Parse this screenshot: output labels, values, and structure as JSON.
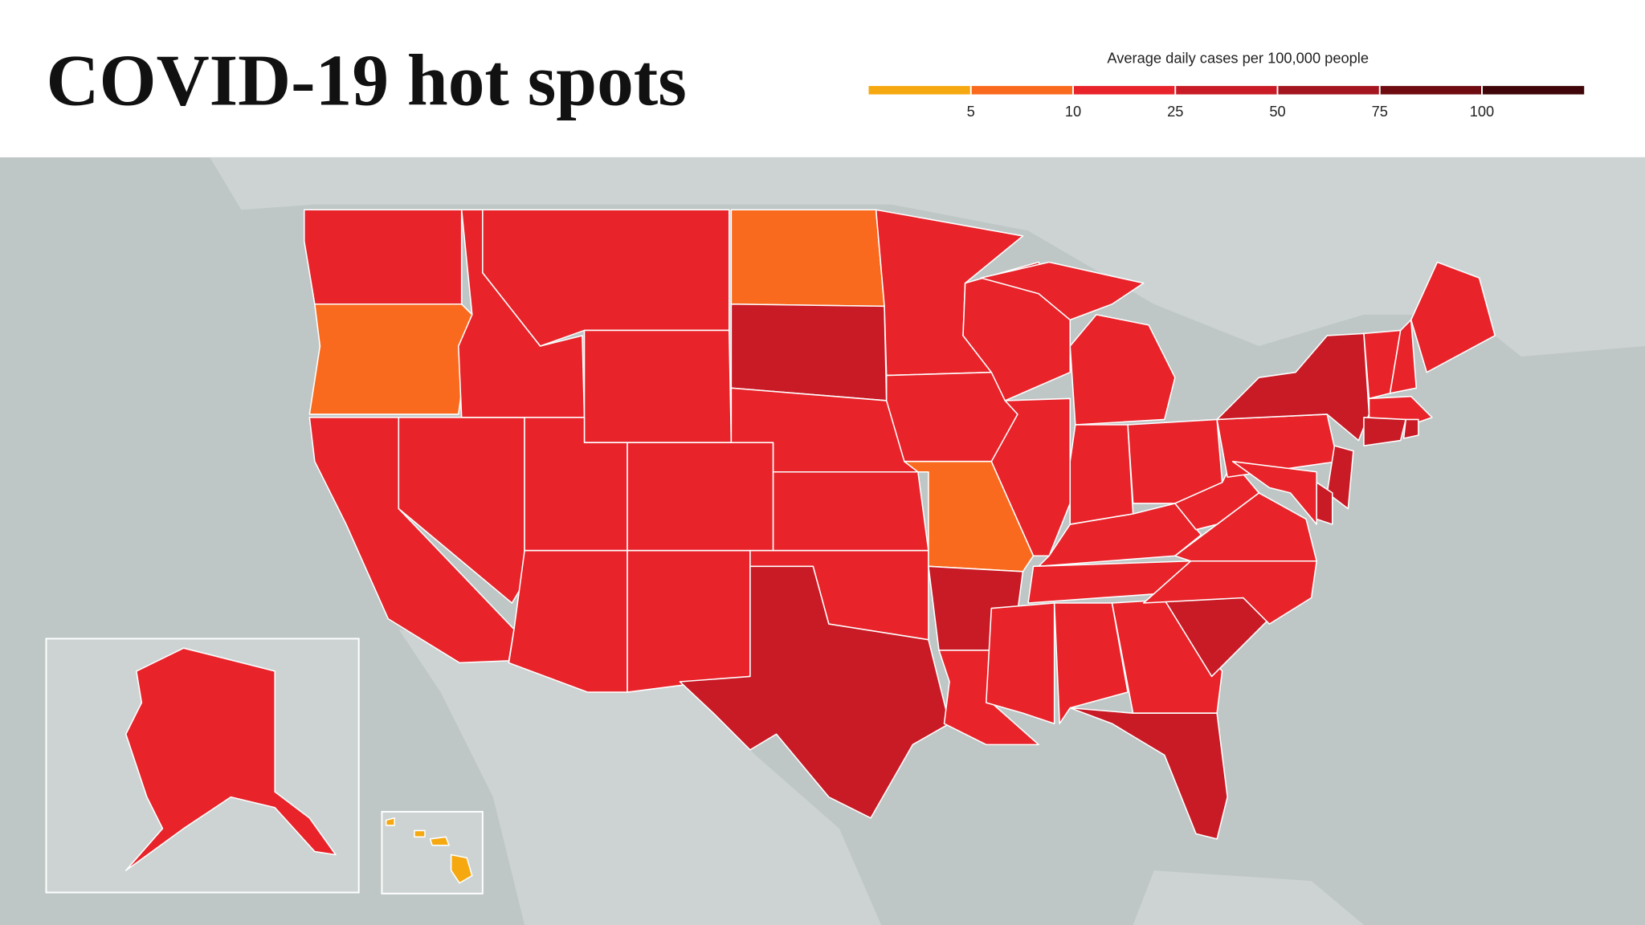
{
  "header": {
    "title": "COVID-19 hot spots"
  },
  "legend": {
    "label": "Average daily cases per 100,000 people",
    "colors": [
      "#f5a80f",
      "#fa6a1e",
      "#e8232a",
      "#c81b26",
      "#a4161f",
      "#6e0c12",
      "#3f0508"
    ],
    "ticks": [
      5,
      10,
      25,
      50,
      75,
      100
    ]
  }
}
